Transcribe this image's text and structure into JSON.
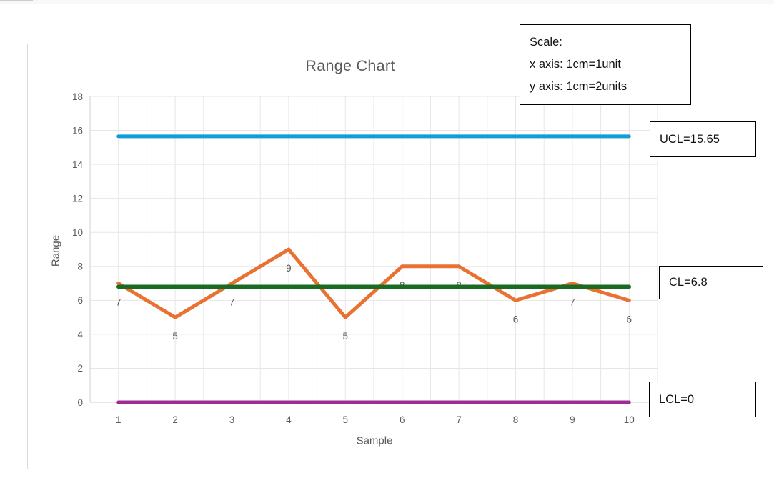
{
  "chart_data": {
    "type": "line",
    "title": "Range Chart",
    "xlabel": "Sample",
    "ylabel": "Range",
    "x": [
      1,
      2,
      3,
      4,
      5,
      6,
      7,
      8,
      9,
      10
    ],
    "series": [
      {
        "name": "Range",
        "values": [
          7,
          5,
          7,
          9,
          5,
          8,
          8,
          6,
          7,
          6
        ]
      }
    ],
    "data_labels": [
      7,
      5,
      7,
      9,
      5,
      8,
      8,
      6,
      7,
      6
    ],
    "control_lines": [
      {
        "name": "UCL",
        "value": 15.65
      },
      {
        "name": "CL",
        "value": 6.8
      },
      {
        "name": "LCL",
        "value": 0
      }
    ],
    "ylim": [
      0,
      18
    ],
    "ytick_step": 2,
    "yticks": [
      0,
      2,
      4,
      6,
      8,
      10,
      12,
      14,
      16,
      18
    ],
    "grid": true,
    "legend": "none"
  },
  "annotations": {
    "scale_box": {
      "line1": "Scale:",
      "line2": "x axis: 1cm=1unit",
      "line3": "y axis: 1cm=2units"
    },
    "ucl_label": "UCL=15.65",
    "cl_label": "CL=6.8",
    "lcl_label": "LCL=0"
  },
  "colors": {
    "series": "#E97132",
    "ucl": "#0F9ED5",
    "cl": "#196B24",
    "lcl": "#A02B93",
    "grid": "#E6E6E6",
    "axis": "#D9D9D9",
    "tick_text": "#595959",
    "annotation_border": "#000000"
  }
}
